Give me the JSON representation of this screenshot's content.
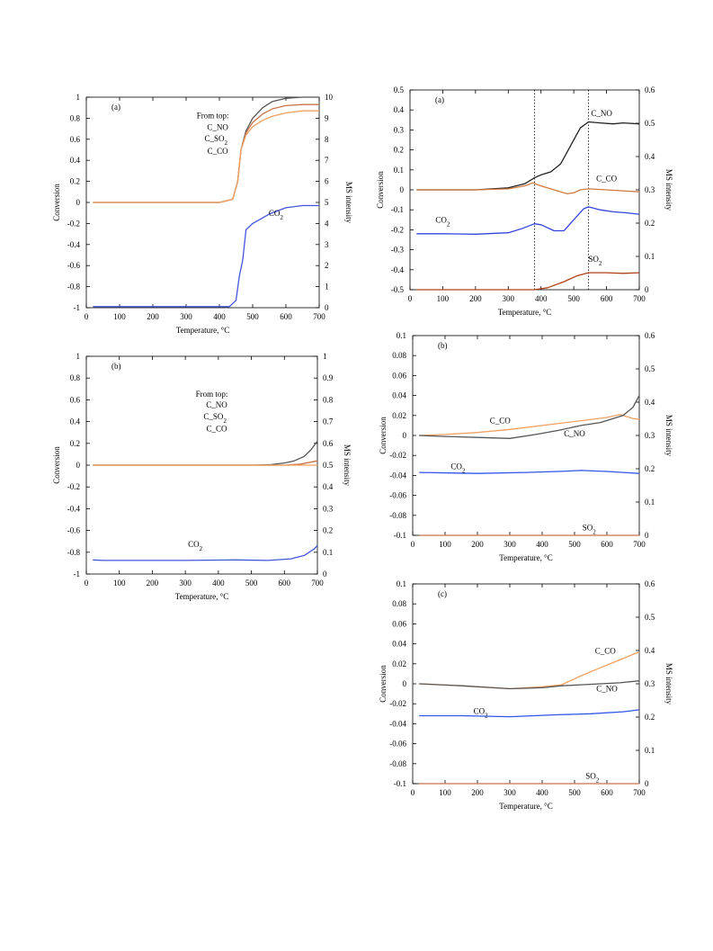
{
  "chart_data": [
    {
      "panel_id": "L-a",
      "type": "line",
      "panel_label": "(a)",
      "xlabel": "Temperature, °C",
      "ylabel": "Conversion",
      "y2label": "MS intensity",
      "xlim": [
        0,
        700
      ],
      "ylim": [
        -1,
        1
      ],
      "y2lim": [
        0,
        10
      ],
      "xticks": [
        0,
        100,
        200,
        300,
        400,
        500,
        600,
        700
      ],
      "yticks": [
        -1,
        -0.8,
        -0.6,
        -0.4,
        -0.2,
        0,
        0.2,
        0.4,
        0.6,
        0.8,
        1
      ],
      "y2ticks": [
        0,
        1,
        2,
        3,
        4,
        5,
        6,
        7,
        8,
        9,
        10
      ],
      "annotations": [
        {
          "text": "From top:",
          "x": 380,
          "y": 0.8
        },
        {
          "text": "C_NO",
          "x": 395,
          "y": 0.69
        },
        {
          "text": "C_SO2",
          "x": 390,
          "y": 0.58
        },
        {
          "text": "C_CO",
          "x": 395,
          "y": 0.46
        },
        {
          "text": "CO2",
          "x": 570,
          "y": -0.13
        }
      ],
      "series": [
        {
          "color": "#555555",
          "axis": "left",
          "x": [
            20,
            400,
            440,
            455,
            465,
            480,
            500,
            530,
            560,
            600,
            650,
            700
          ],
          "y": [
            0,
            0,
            0.03,
            0.2,
            0.5,
            0.68,
            0.8,
            0.9,
            0.96,
            0.99,
            1.0,
            1.0
          ]
        },
        {
          "color": "#c9744a",
          "axis": "left",
          "x": [
            20,
            400,
            440,
            455,
            465,
            480,
            500,
            530,
            560,
            600,
            650,
            700
          ],
          "y": [
            0,
            0,
            0.03,
            0.2,
            0.5,
            0.66,
            0.76,
            0.84,
            0.89,
            0.92,
            0.93,
            0.93
          ]
        },
        {
          "color": "#f0a060",
          "axis": "left",
          "x": [
            20,
            400,
            440,
            455,
            465,
            480,
            500,
            530,
            560,
            600,
            650,
            700
          ],
          "y": [
            0,
            0,
            0.03,
            0.2,
            0.5,
            0.64,
            0.72,
            0.78,
            0.82,
            0.85,
            0.87,
            0.87
          ]
        },
        {
          "color": "#4455dd",
          "axis": "left",
          "x": [
            20,
            430,
            450,
            460,
            470,
            480,
            500,
            550,
            600,
            650,
            700
          ],
          "y": [
            -0.99,
            -0.99,
            -0.93,
            -0.7,
            -0.55,
            -0.26,
            -0.2,
            -0.11,
            -0.05,
            -0.03,
            -0.03
          ]
        }
      ]
    },
    {
      "panel_id": "L-b",
      "type": "line",
      "panel_label": "(b)",
      "xlabel": "Temperature, °C",
      "ylabel": "Conversion",
      "y2label": "MS intensity",
      "xlim": [
        0,
        700
      ],
      "ylim": [
        -1,
        1
      ],
      "y2lim": [
        0,
        1
      ],
      "xticks": [
        0,
        100,
        200,
        300,
        400,
        500,
        600,
        700
      ],
      "yticks": [
        -1,
        -0.8,
        -0.6,
        -0.4,
        -0.2,
        0,
        0.2,
        0.4,
        0.6,
        0.8,
        1
      ],
      "y2ticks": [
        0,
        0.1,
        0.2,
        0.3,
        0.4,
        0.5,
        0.6,
        0.7,
        0.8,
        0.9,
        1
      ],
      "annotations": [
        {
          "text": "From top:",
          "x": 380,
          "y": 0.63
        },
        {
          "text": "C_NO",
          "x": 395,
          "y": 0.53
        },
        {
          "text": "C_SO2",
          "x": 390,
          "y": 0.42
        },
        {
          "text": "C_CO",
          "x": 395,
          "y": 0.31
        },
        {
          "text": "CO2",
          "x": 330,
          "y": -0.75
        }
      ],
      "series": [
        {
          "color": "#555555",
          "axis": "left",
          "x": [
            20,
            500,
            560,
            600,
            630,
            660,
            680,
            700
          ],
          "y": [
            0,
            0,
            0.005,
            0.02,
            0.04,
            0.08,
            0.14,
            0.22
          ]
        },
        {
          "color": "#c9744a",
          "axis": "left",
          "x": [
            20,
            600,
            650,
            700
          ],
          "y": [
            0,
            0,
            0.01,
            0.04
          ]
        },
        {
          "color": "#f0a060",
          "axis": "left",
          "x": [
            20,
            700
          ],
          "y": [
            0,
            0
          ]
        },
        {
          "color": "#4455dd",
          "axis": "left",
          "x": [
            20,
            50,
            150,
            300,
            450,
            550,
            620,
            660,
            690,
            700
          ],
          "y": [
            -0.87,
            -0.875,
            -0.875,
            -0.875,
            -0.87,
            -0.875,
            -0.86,
            -0.83,
            -0.77,
            -0.74
          ]
        }
      ]
    },
    {
      "panel_id": "R-a",
      "type": "line",
      "panel_label": "(a)",
      "xlabel": "Temperature, °C",
      "ylabel": "Conversion",
      "y2label": "MS intensity",
      "xlim": [
        0,
        700
      ],
      "ylim": [
        -0.5,
        0.5
      ],
      "y2lim": [
        0,
        0.6
      ],
      "xticks": [
        0,
        100,
        200,
        300,
        400,
        500,
        600,
        700
      ],
      "yticks": [
        -0.5,
        -0.4,
        -0.3,
        -0.2,
        -0.1,
        0,
        0.1,
        0.2,
        0.3,
        0.4,
        0.5
      ],
      "y2ticks": [
        0,
        0.1,
        0.2,
        0.3,
        0.4,
        0.5,
        0.6
      ],
      "reference_lines_x": [
        380,
        545
      ],
      "annotations": [
        {
          "text": "C_NO",
          "x": 585,
          "y": 0.37
        },
        {
          "text": "C_CO",
          "x": 600,
          "y": 0.042
        },
        {
          "text": "CO2",
          "x": 100,
          "y": -0.165
        },
        {
          "text": "SO2",
          "x": 565,
          "y": -0.36
        }
      ],
      "series": [
        {
          "color": "#222222",
          "axis": "left",
          "x": [
            20,
            200,
            300,
            350,
            380,
            400,
            430,
            460,
            490,
            520,
            545,
            580,
            620,
            650,
            700
          ],
          "y": [
            0,
            0,
            0.01,
            0.03,
            0.06,
            0.075,
            0.09,
            0.13,
            0.22,
            0.31,
            0.34,
            0.335,
            0.33,
            0.335,
            0.33
          ]
        },
        {
          "color": "#d07a40",
          "axis": "left",
          "x": [
            20,
            200,
            300,
            350,
            375,
            400,
            440,
            480,
            500,
            520,
            545,
            600,
            650,
            700
          ],
          "y": [
            0,
            0,
            0.005,
            0.02,
            0.035,
            0.02,
            0.0,
            -0.02,
            -0.015,
            0.0,
            0.005,
            0.0,
            -0.005,
            -0.01
          ]
        },
        {
          "color": "#3344dd",
          "axis": "left",
          "x": [
            20,
            100,
            200,
            300,
            340,
            380,
            400,
            440,
            470,
            500,
            530,
            545,
            580,
            620,
            660,
            700
          ],
          "y": [
            -0.22,
            -0.22,
            -0.222,
            -0.215,
            -0.195,
            -0.17,
            -0.175,
            -0.205,
            -0.205,
            -0.15,
            -0.095,
            -0.085,
            -0.1,
            -0.11,
            -0.115,
            -0.122
          ]
        },
        {
          "color": "#b04018",
          "axis": "left",
          "x": [
            20,
            380,
            420,
            470,
            510,
            545,
            600,
            650,
            700
          ],
          "y": [
            -0.5,
            -0.5,
            -0.49,
            -0.46,
            -0.43,
            -0.415,
            -0.415,
            -0.418,
            -0.415
          ]
        }
      ]
    },
    {
      "panel_id": "R-b",
      "type": "line",
      "panel_label": "(b)",
      "xlabel": "Temperature, °C",
      "ylabel": "Conversion",
      "y2label": "MS intensity",
      "xlim": [
        0,
        700
      ],
      "ylim": [
        -0.1,
        0.1
      ],
      "y2lim": [
        0,
        0.6
      ],
      "xticks": [
        0,
        100,
        200,
        300,
        400,
        500,
        600,
        700
      ],
      "yticks": [
        -0.1,
        -0.08,
        -0.06,
        -0.04,
        -0.02,
        0,
        0.02,
        0.04,
        0.06,
        0.08,
        0.1
      ],
      "y2ticks": [
        0,
        0.1,
        0.2,
        0.3,
        0.4,
        0.5,
        0.6
      ],
      "annotations": [
        {
          "text": "C_CO",
          "x": 270,
          "y": 0.012
        },
        {
          "text": "C_NO",
          "x": 500,
          "y": -0.001
        },
        {
          "text": "CO2",
          "x": 140,
          "y": -0.034
        },
        {
          "text": "SO2",
          "x": 545,
          "y": -0.095
        }
      ],
      "series": [
        {
          "color": "#f0a060",
          "axis": "left",
          "x": [
            20,
            100,
            200,
            300,
            400,
            500,
            600,
            640,
            680,
            700
          ],
          "y": [
            0,
            0.001,
            0.003,
            0.006,
            0.01,
            0.014,
            0.018,
            0.021,
            0.017,
            0.016
          ]
        },
        {
          "color": "#555555",
          "axis": "left",
          "x": [
            20,
            100,
            200,
            300,
            380,
            450,
            520,
            580,
            620,
            650,
            680,
            700
          ],
          "y": [
            0,
            -0.001,
            -0.002,
            -0.003,
            0.001,
            0.005,
            0.01,
            0.013,
            0.017,
            0.02,
            0.028,
            0.04
          ]
        },
        {
          "color": "#3355ee",
          "axis": "left",
          "x": [
            20,
            200,
            350,
            450,
            520,
            600,
            650,
            700
          ],
          "y": [
            -0.037,
            -0.038,
            -0.037,
            -0.036,
            -0.035,
            -0.036,
            -0.037,
            -0.038
          ]
        },
        {
          "color": "#c9744a",
          "axis": "left",
          "x": [
            20,
            700
          ],
          "y": [
            -0.1,
            -0.1
          ]
        }
      ]
    },
    {
      "panel_id": "R-c",
      "type": "line",
      "panel_label": "(c)",
      "xlabel": "Temperature, °C",
      "ylabel": "Conversion",
      "y2label": "MS intensity",
      "xlim": [
        0,
        700
      ],
      "ylim": [
        -0.1,
        0.1
      ],
      "y2lim": [
        0,
        0.6
      ],
      "xticks": [
        0,
        100,
        200,
        300,
        400,
        500,
        600,
        700
      ],
      "yticks": [
        -0.1,
        -0.08,
        -0.06,
        -0.04,
        -0.02,
        0,
        0.02,
        0.04,
        0.06,
        0.08,
        0.1
      ],
      "y2ticks": [
        0,
        0.1,
        0.2,
        0.3,
        0.4,
        0.5,
        0.6
      ],
      "annotations": [
        {
          "text": "C_CO",
          "x": 595,
          "y": 0.03
        },
        {
          "text": "C_NO",
          "x": 600,
          "y": -0.0075
        },
        {
          "text": "CO2",
          "x": 210,
          "y": -0.03
        },
        {
          "text": "SO2",
          "x": 555,
          "y": -0.095
        }
      ],
      "series": [
        {
          "color": "#f0a060",
          "axis": "left",
          "x": [
            20,
            150,
            250,
            300,
            400,
            460,
            520,
            580,
            640,
            700
          ],
          "y": [
            0,
            -0.002,
            -0.004,
            -0.005,
            -0.003,
            -0.001,
            0.008,
            0.016,
            0.024,
            0.032
          ]
        },
        {
          "color": "#555555",
          "axis": "left",
          "x": [
            20,
            150,
            250,
            300,
            400,
            460,
            520,
            580,
            640,
            700
          ],
          "y": [
            0,
            -0.002,
            -0.004,
            -0.005,
            -0.004,
            -0.002,
            -0.001,
            0.0,
            0.001,
            0.003
          ]
        },
        {
          "color": "#3355ee",
          "axis": "left",
          "x": [
            20,
            150,
            300,
            450,
            550,
            650,
            700
          ],
          "y": [
            -0.032,
            -0.032,
            -0.033,
            -0.031,
            -0.03,
            -0.028,
            -0.026
          ]
        },
        {
          "color": "#c9744a",
          "axis": "left",
          "x": [
            20,
            700
          ],
          "y": [
            -0.1,
            -0.1
          ]
        }
      ]
    }
  ]
}
